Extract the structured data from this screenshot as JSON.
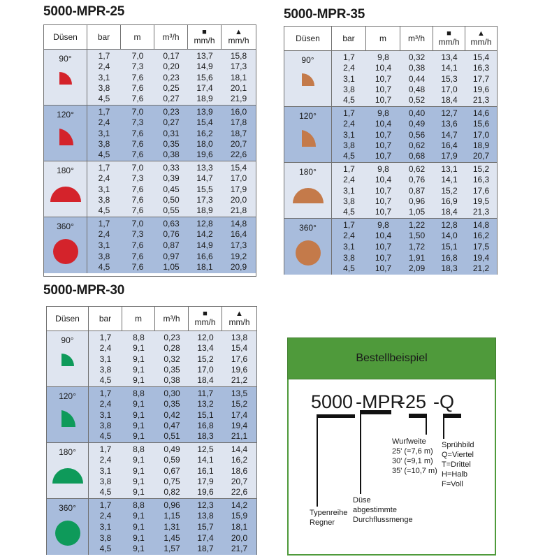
{
  "tables": [
    {
      "title": "5000-MPR-25",
      "headers": {
        "nozzle": "Düsen",
        "bar": "bar",
        "m": "m",
        "flow": "m³/h",
        "sq_symbol": "■",
        "sq_unit": "mm/h",
        "tri_symbol": "▲",
        "tri_unit": "mm/h"
      },
      "color": "#d4232b",
      "groups": [
        {
          "label": "90°",
          "shape": "quarter",
          "rows": [
            [
              "1,7",
              "7,0",
              "0,17",
              "13,7",
              "15,8"
            ],
            [
              "2,4",
              "7,3",
              "0,20",
              "14,9",
              "17,3"
            ],
            [
              "3,1",
              "7,6",
              "0,23",
              "15,6",
              "18,1"
            ],
            [
              "3,8",
              "7,6",
              "0,25",
              "17,4",
              "20,1"
            ],
            [
              "4,5",
              "7,6",
              "0,27",
              "18,9",
              "21,9"
            ]
          ]
        },
        {
          "label": "120°",
          "shape": "third",
          "rows": [
            [
              "1,7",
              "7,0",
              "0,23",
              "13,9",
              "16,0"
            ],
            [
              "2,4",
              "7,3",
              "0,27",
              "15,4",
              "17,8"
            ],
            [
              "3,1",
              "7,6",
              "0,31",
              "16,2",
              "18,7"
            ],
            [
              "3,8",
              "7,6",
              "0,35",
              "18,0",
              "20,7"
            ],
            [
              "4,5",
              "7,6",
              "0,38",
              "19,6",
              "22,6"
            ]
          ]
        },
        {
          "label": "180°",
          "shape": "half",
          "rows": [
            [
              "1,7",
              "7,0",
              "0,33",
              "13,3",
              "15,4"
            ],
            [
              "2,4",
              "7,3",
              "0,39",
              "14,7",
              "17,0"
            ],
            [
              "3,1",
              "7,6",
              "0,45",
              "15,5",
              "17,9"
            ],
            [
              "3,8",
              "7,6",
              "0,50",
              "17,3",
              "20,0"
            ],
            [
              "4,5",
              "7,6",
              "0,55",
              "18,9",
              "21,8"
            ]
          ]
        },
        {
          "label": "360°",
          "shape": "full",
          "rows": [
            [
              "1,7",
              "7,0",
              "0,63",
              "12,8",
              "14,8"
            ],
            [
              "2,4",
              "7,3",
              "0,76",
              "14,2",
              "16,4"
            ],
            [
              "3,1",
              "7,6",
              "0,87",
              "14,9",
              "17,3"
            ],
            [
              "3,8",
              "7,6",
              "0,97",
              "16,6",
              "19,2"
            ],
            [
              "4,5",
              "7,6",
              "1,05",
              "18,1",
              "20,9"
            ]
          ]
        }
      ]
    },
    {
      "title": "5000-MPR-35",
      "headers": {
        "nozzle": "Düsen",
        "bar": "bar",
        "m": "m",
        "flow": "m³/h",
        "sq_symbol": "■",
        "sq_unit": "mm/h",
        "tri_symbol": "▲",
        "tri_unit": "mm/h"
      },
      "color": "#c47a4a",
      "groups": [
        {
          "label": "90°",
          "shape": "quarter",
          "rows": [
            [
              "1,7",
              "9,8",
              "0,32",
              "13,4",
              "15,4"
            ],
            [
              "2,4",
              "10,4",
              "0,38",
              "14,1",
              "16,3"
            ],
            [
              "3,1",
              "10,7",
              "0,44",
              "15,3",
              "17,7"
            ],
            [
              "3,8",
              "10,7",
              "0,48",
              "17,0",
              "19,6"
            ],
            [
              "4,5",
              "10,7",
              "0,52",
              "18,4",
              "21,3"
            ]
          ]
        },
        {
          "label": "120°",
          "shape": "third",
          "rows": [
            [
              "1,7",
              "9,8",
              "0,40",
              "12,7",
              "14,6"
            ],
            [
              "2,4",
              "10,4",
              "0,49",
              "13,6",
              "15,6"
            ],
            [
              "3,1",
              "10,7",
              "0,56",
              "14,7",
              "17,0"
            ],
            [
              "3,8",
              "10,7",
              "0,62",
              "16,4",
              "18,9"
            ],
            [
              "4,5",
              "10,7",
              "0,68",
              "17,9",
              "20,7"
            ]
          ]
        },
        {
          "label": "180°",
          "shape": "half",
          "rows": [
            [
              "1,7",
              "9,8",
              "0,62",
              "13,1",
              "15,2"
            ],
            [
              "2,4",
              "10,4",
              "0,76",
              "14,1",
              "16,3"
            ],
            [
              "3,1",
              "10,7",
              "0,87",
              "15,2",
              "17,6"
            ],
            [
              "3,8",
              "10,7",
              "0,96",
              "16,9",
              "19,5"
            ],
            [
              "4,5",
              "10,7",
              "1,05",
              "18,4",
              "21,3"
            ]
          ]
        },
        {
          "label": "360°",
          "shape": "full",
          "rows": [
            [
              "1,7",
              "9,8",
              "1,22",
              "12,8",
              "14,8"
            ],
            [
              "2,4",
              "10,4",
              "1,50",
              "14,0",
              "16,2"
            ],
            [
              "3,1",
              "10,7",
              "1,72",
              "15,1",
              "17,5"
            ],
            [
              "3,8",
              "10,7",
              "1,91",
              "16,8",
              "19,4"
            ],
            [
              "4,5",
              "10,7",
              "2,09",
              "18,3",
              "21,2"
            ]
          ]
        }
      ]
    },
    {
      "title": "5000-MPR-30",
      "headers": {
        "nozzle": "Düsen",
        "bar": "bar",
        "m": "m",
        "flow": "m³/h",
        "sq_symbol": "■",
        "sq_unit": "mm/h",
        "tri_symbol": "▲",
        "tri_unit": "mm/h"
      },
      "color": "#0e9a5a",
      "groups": [
        {
          "label": "90°",
          "shape": "quarter",
          "rows": [
            [
              "1,7",
              "8,8",
              "0,23",
              "12,0",
              "13,8"
            ],
            [
              "2,4",
              "9,1",
              "0,28",
              "13,4",
              "15,4"
            ],
            [
              "3,1",
              "9,1",
              "0,32",
              "15,2",
              "17,6"
            ],
            [
              "3,8",
              "9,1",
              "0,35",
              "17,0",
              "19,6"
            ],
            [
              "4,5",
              "9,1",
              "0,38",
              "18,4",
              "21,2"
            ]
          ]
        },
        {
          "label": "120°",
          "shape": "third",
          "rows": [
            [
              "1,7",
              "8,8",
              "0,30",
              "11,7",
              "13,5"
            ],
            [
              "2,4",
              "9,1",
              "0,35",
              "13,2",
              "15,2"
            ],
            [
              "3,1",
              "9,1",
              "0,42",
              "15,1",
              "17,4"
            ],
            [
              "3,8",
              "9,1",
              "0,47",
              "16,8",
              "19,4"
            ],
            [
              "4,5",
              "9,1",
              "0,51",
              "18,3",
              "21,1"
            ]
          ]
        },
        {
          "label": "180°",
          "shape": "half",
          "rows": [
            [
              "1,7",
              "8,8",
              "0,49",
              "12,5",
              "14,4"
            ],
            [
              "2,4",
              "9,1",
              "0,59",
              "14,1",
              "16,2"
            ],
            [
              "3,1",
              "9,1",
              "0,67",
              "16,1",
              "18,6"
            ],
            [
              "3,8",
              "9,1",
              "0,75",
              "17,9",
              "20,7"
            ],
            [
              "4,5",
              "9,1",
              "0,82",
              "19,6",
              "22,6"
            ]
          ]
        },
        {
          "label": "360°",
          "shape": "full",
          "rows": [
            [
              "1,7",
              "8,8",
              "0,96",
              "12,3",
              "14,2"
            ],
            [
              "2,4",
              "9,1",
              "1,15",
              "13,8",
              "15,9"
            ],
            [
              "3,1",
              "9,1",
              "1,31",
              "15,7",
              "18,1"
            ],
            [
              "3,8",
              "9,1",
              "1,45",
              "17,4",
              "20,0"
            ],
            [
              "4,5",
              "9,1",
              "1,57",
              "18,7",
              "21,7"
            ]
          ]
        }
      ]
    }
  ],
  "order_example": {
    "title": "Bestellbeispiel",
    "code": {
      "series": "5000",
      "model": "-MPR",
      "range": "-25",
      "pattern": "-Q"
    },
    "labels": {
      "series": [
        "Typenreihe",
        "Regner"
      ],
      "nozzle": [
        "Düse",
        "abgestimmte",
        "Durchflussmenge"
      ],
      "range": [
        "Wurfweite",
        "25' (=7,6 m)",
        "30' (=9,1 m)",
        "35' (=10,7 m)"
      ],
      "pattern": [
        "Sprühbild",
        "Q=Viertel",
        "T=Drittel",
        "H=Halb",
        "F=Voll"
      ]
    },
    "accent_color": "#4f9a3b"
  }
}
